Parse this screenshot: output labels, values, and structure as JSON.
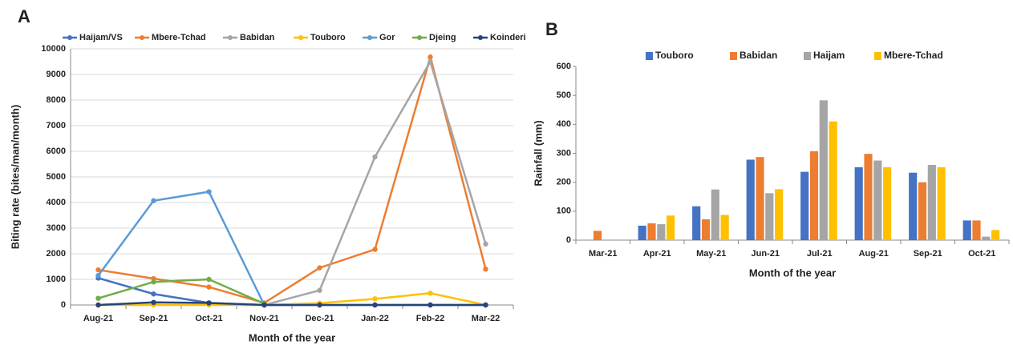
{
  "chart_data": [
    {
      "type": "line",
      "label": "A",
      "x_label": "Month of the year",
      "y_label": "Biting rate (bites/man/month)",
      "categories": [
        "Aug-21",
        "Sep-21",
        "Oct-21",
        "Nov-21",
        "Dec-21",
        "Jan-22",
        "Feb-22",
        "Mar-22"
      ],
      "ylim": [
        0,
        10000
      ],
      "yticks": [
        0,
        1000,
        2000,
        3000,
        4000,
        5000,
        6000,
        7000,
        8000,
        9000,
        10000
      ],
      "grid": true,
      "series": [
        {
          "name": "Haijam/VS",
          "color": "#4472c4",
          "values": [
            1050,
            430,
            80,
            0,
            0,
            0,
            0,
            0
          ]
        },
        {
          "name": "Mbere-Tchad",
          "color": "#ed7d31",
          "values": [
            1370,
            1030,
            700,
            80,
            1450,
            2170,
            9680,
            1400
          ]
        },
        {
          "name": "Babidan",
          "color": "#a5a5a5",
          "values": [
            null,
            null,
            null,
            0,
            570,
            5780,
            9500,
            2380
          ]
        },
        {
          "name": "Touboro",
          "color": "#ffc000",
          "values": [
            0,
            0,
            0,
            0,
            70,
            240,
            460,
            0
          ]
        },
        {
          "name": "Gor",
          "color": "#5b9bd5",
          "values": [
            1150,
            4070,
            4420,
            0,
            null,
            null,
            null,
            null
          ]
        },
        {
          "name": "Djeing",
          "color": "#70ad47",
          "values": [
            260,
            900,
            1000,
            50,
            null,
            null,
            null,
            null
          ]
        },
        {
          "name": "Koinderi",
          "color": "#264478",
          "values": [
            0,
            100,
            80,
            0,
            0,
            0,
            0,
            0
          ]
        }
      ]
    },
    {
      "type": "bar",
      "label": "B",
      "x_label": "Month of the year",
      "y_label": "Rainfall (mm)",
      "categories": [
        "Mar-21",
        "Apr-21",
        "May-21",
        "Jun-21",
        "Jul-21",
        "Aug-21",
        "Sep-21",
        "Oct-21"
      ],
      "ylim": [
        0,
        600
      ],
      "yticks": [
        0,
        100,
        200,
        300,
        400,
        500,
        600
      ],
      "grid": false,
      "series": [
        {
          "name": "Touboro",
          "color": "#4472c4",
          "values": [
            null,
            50,
            117,
            278,
            236,
            252,
            233,
            68
          ]
        },
        {
          "name": "Babidan",
          "color": "#ed7d31",
          "values": [
            32,
            58,
            72,
            287,
            307,
            298,
            200,
            68
          ]
        },
        {
          "name": "Haijam",
          "color": "#a5a5a5",
          "values": [
            null,
            55,
            175,
            162,
            483,
            275,
            260,
            12
          ]
        },
        {
          "name": "Mbere-Tchad",
          "color": "#ffc000",
          "values": [
            null,
            85,
            87,
            176,
            410,
            252,
            252,
            35
          ]
        }
      ]
    }
  ]
}
